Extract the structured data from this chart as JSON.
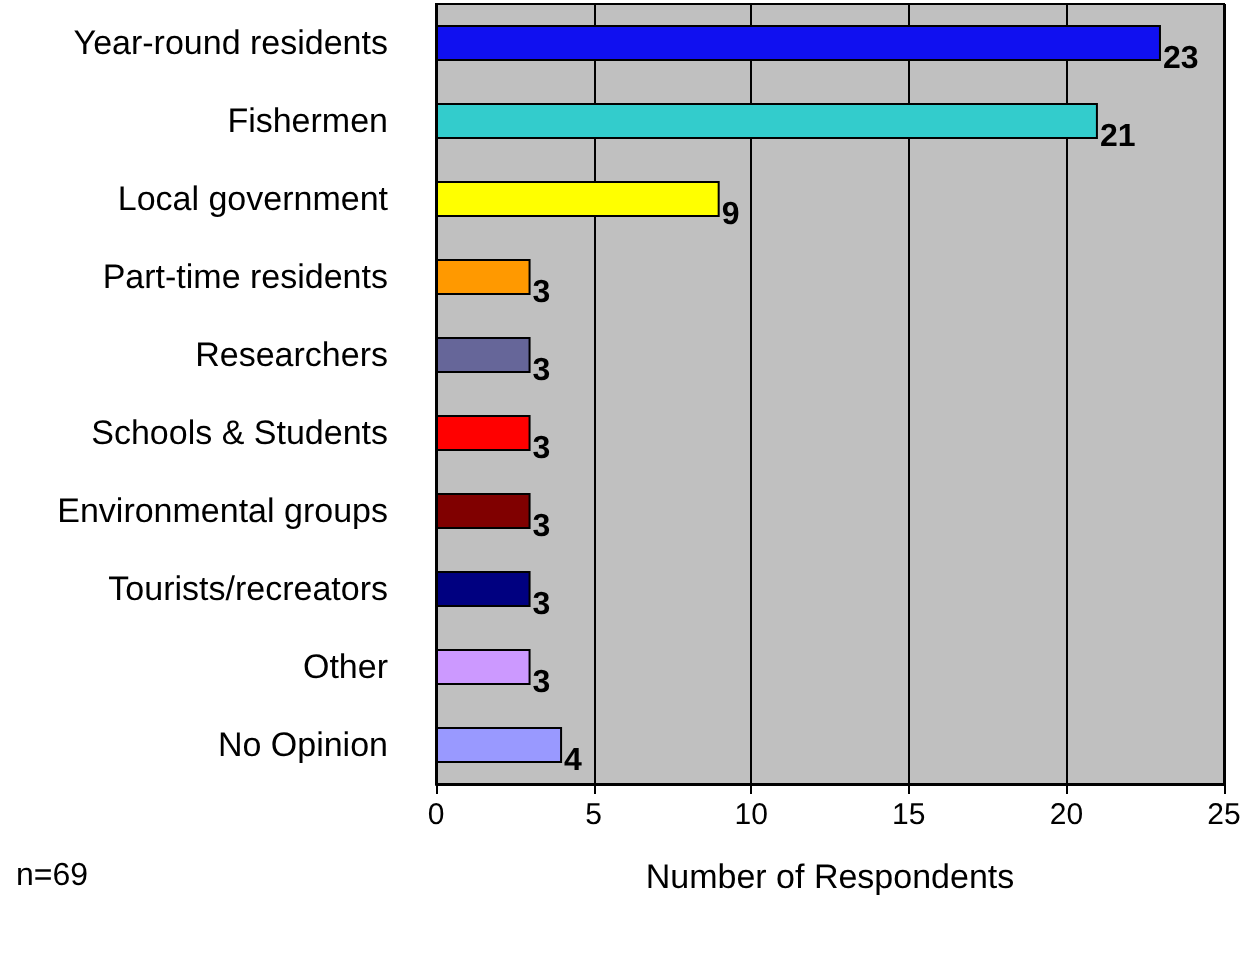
{
  "chart_data": {
    "type": "bar",
    "orientation": "horizontal",
    "xlabel": "Number of Respondents",
    "categories": [
      "Year-round residents",
      "Fishermen",
      "Local government",
      "Part-time residents",
      "Researchers",
      "Schools & Students",
      "Environmental groups",
      "Tourists/recreators",
      "Other",
      "No Opinion"
    ],
    "values": [
      23,
      21,
      9,
      3,
      3,
      3,
      3,
      3,
      3,
      4
    ],
    "colors": [
      "#1010f0",
      "#33cccc",
      "#ffff00",
      "#ff9900",
      "#666699",
      "#ff0000",
      "#800000",
      "#000080",
      "#cc99ff",
      "#9999ff"
    ],
    "xlim": [
      0,
      25
    ],
    "xticks": [
      0,
      5,
      10,
      15,
      20,
      25
    ],
    "grid": "x",
    "data_labels": true,
    "annotations": [
      "n=69"
    ]
  }
}
